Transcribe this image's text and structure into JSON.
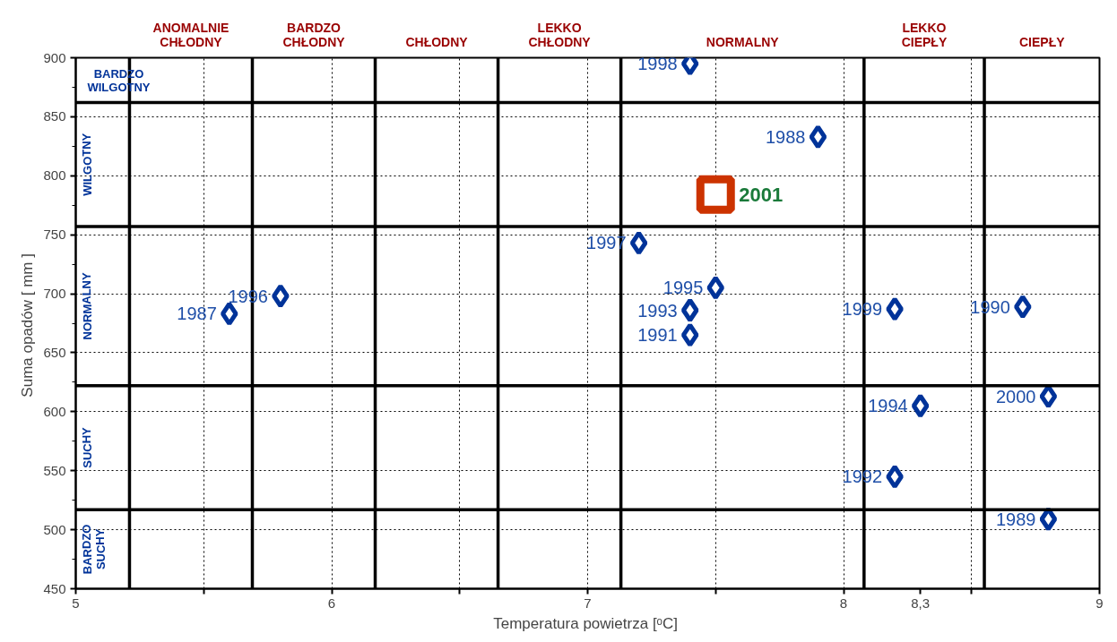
{
  "chart_data": {
    "type": "scatter",
    "xlabel": "Temperatura powietrza  [ᵒC]",
    "ylabel": "Suma opadów  [ mm ]",
    "xlim": [
      5,
      9
    ],
    "ylim": [
      450,
      900
    ],
    "xticks": [
      5,
      {
        "value": 5.5,
        "label": null
      },
      6,
      {
        "value": 6.5,
        "label": null
      },
      7,
      {
        "value": 7.5,
        "label": null
      },
      8,
      {
        "value": 8.3,
        "label": "8,3"
      },
      {
        "value": 8.5,
        "label": null
      },
      9
    ],
    "yticks": [
      450,
      500,
      550,
      600,
      650,
      700,
      750,
      800,
      850,
      900
    ],
    "grid": true,
    "series": [
      {
        "color": "#003399",
        "marker": "diamond",
        "x": [
          7.4,
          7.9,
          7.2,
          5.8,
          5.6,
          7.5,
          7.4,
          7.4,
          8.2,
          8.7,
          8.3,
          8.8,
          8.2,
          8.8
        ],
        "values": [
          895,
          833,
          743,
          698,
          683,
          705,
          686,
          665,
          687,
          689,
          605,
          613,
          545,
          509
        ]
      },
      {
        "color": "#cc3300",
        "marker": "square",
        "x": [
          7.5
        ],
        "values": [
          784
        ]
      }
    ],
    "annotations": [
      {
        "text": "1998",
        "x": 7.4,
        "y": 895
      },
      {
        "text": "1988",
        "x": 7.9,
        "y": 833
      },
      {
        "text": "2001",
        "x": 7.5,
        "y": 784
      },
      {
        "text": "1997",
        "x": 7.2,
        "y": 743
      },
      {
        "text": "1996",
        "x": 5.8,
        "y": 698
      },
      {
        "text": "1987",
        "x": 5.6,
        "y": 683
      },
      {
        "text": "1995",
        "x": 7.5,
        "y": 705
      },
      {
        "text": "1993",
        "x": 7.4,
        "y": 686
      },
      {
        "text": "1991",
        "x": 7.4,
        "y": 665
      },
      {
        "text": "1999",
        "x": 8.2,
        "y": 687
      },
      {
        "text": "1990",
        "x": 8.7,
        "y": 689
      },
      {
        "text": "1994",
        "x": 8.3,
        "y": 605
      },
      {
        "text": "2000",
        "x": 8.8,
        "y": 613
      },
      {
        "text": "1992",
        "x": 8.2,
        "y": 545
      },
      {
        "text": "1989",
        "x": 8.8,
        "y": 509
      },
      "ANOMALNIE\nCHŁODNY",
      "BARDZO\nCHŁODNY",
      "CHŁODNY",
      "LEKKO\nCHŁODNY",
      "NORMALNY",
      "LEKKO\nCIEPŁY",
      "CIEPŁY",
      "BARDZO\nWILGOTNY",
      "WILGOTNY",
      "NORMALNY",
      "SUCHY",
      "BARDZO\nSUCHY"
    ],
    "ref_lines": [
      {
        "axis": "x",
        "value": 5.21,
        "color": "#000000"
      },
      {
        "axis": "x",
        "value": 5.69,
        "color": "#000000"
      },
      {
        "axis": "x",
        "value": 6.17,
        "color": "#000000"
      },
      {
        "axis": "x",
        "value": 6.65,
        "color": "#000000"
      },
      {
        "axis": "x",
        "value": 7.13,
        "color": "#000000"
      },
      {
        "axis": "x",
        "value": 8.08,
        "color": "#000000"
      },
      {
        "axis": "x",
        "value": 8.55,
        "color": "#000000"
      },
      {
        "axis": "y",
        "value": 862,
        "color": "#000000"
      },
      {
        "axis": "y",
        "value": 757,
        "color": "#000000"
      },
      {
        "axis": "y",
        "value": 622,
        "color": "#000000"
      },
      {
        "axis": "y",
        "value": 517,
        "color": "#000000"
      }
    ]
  }
}
